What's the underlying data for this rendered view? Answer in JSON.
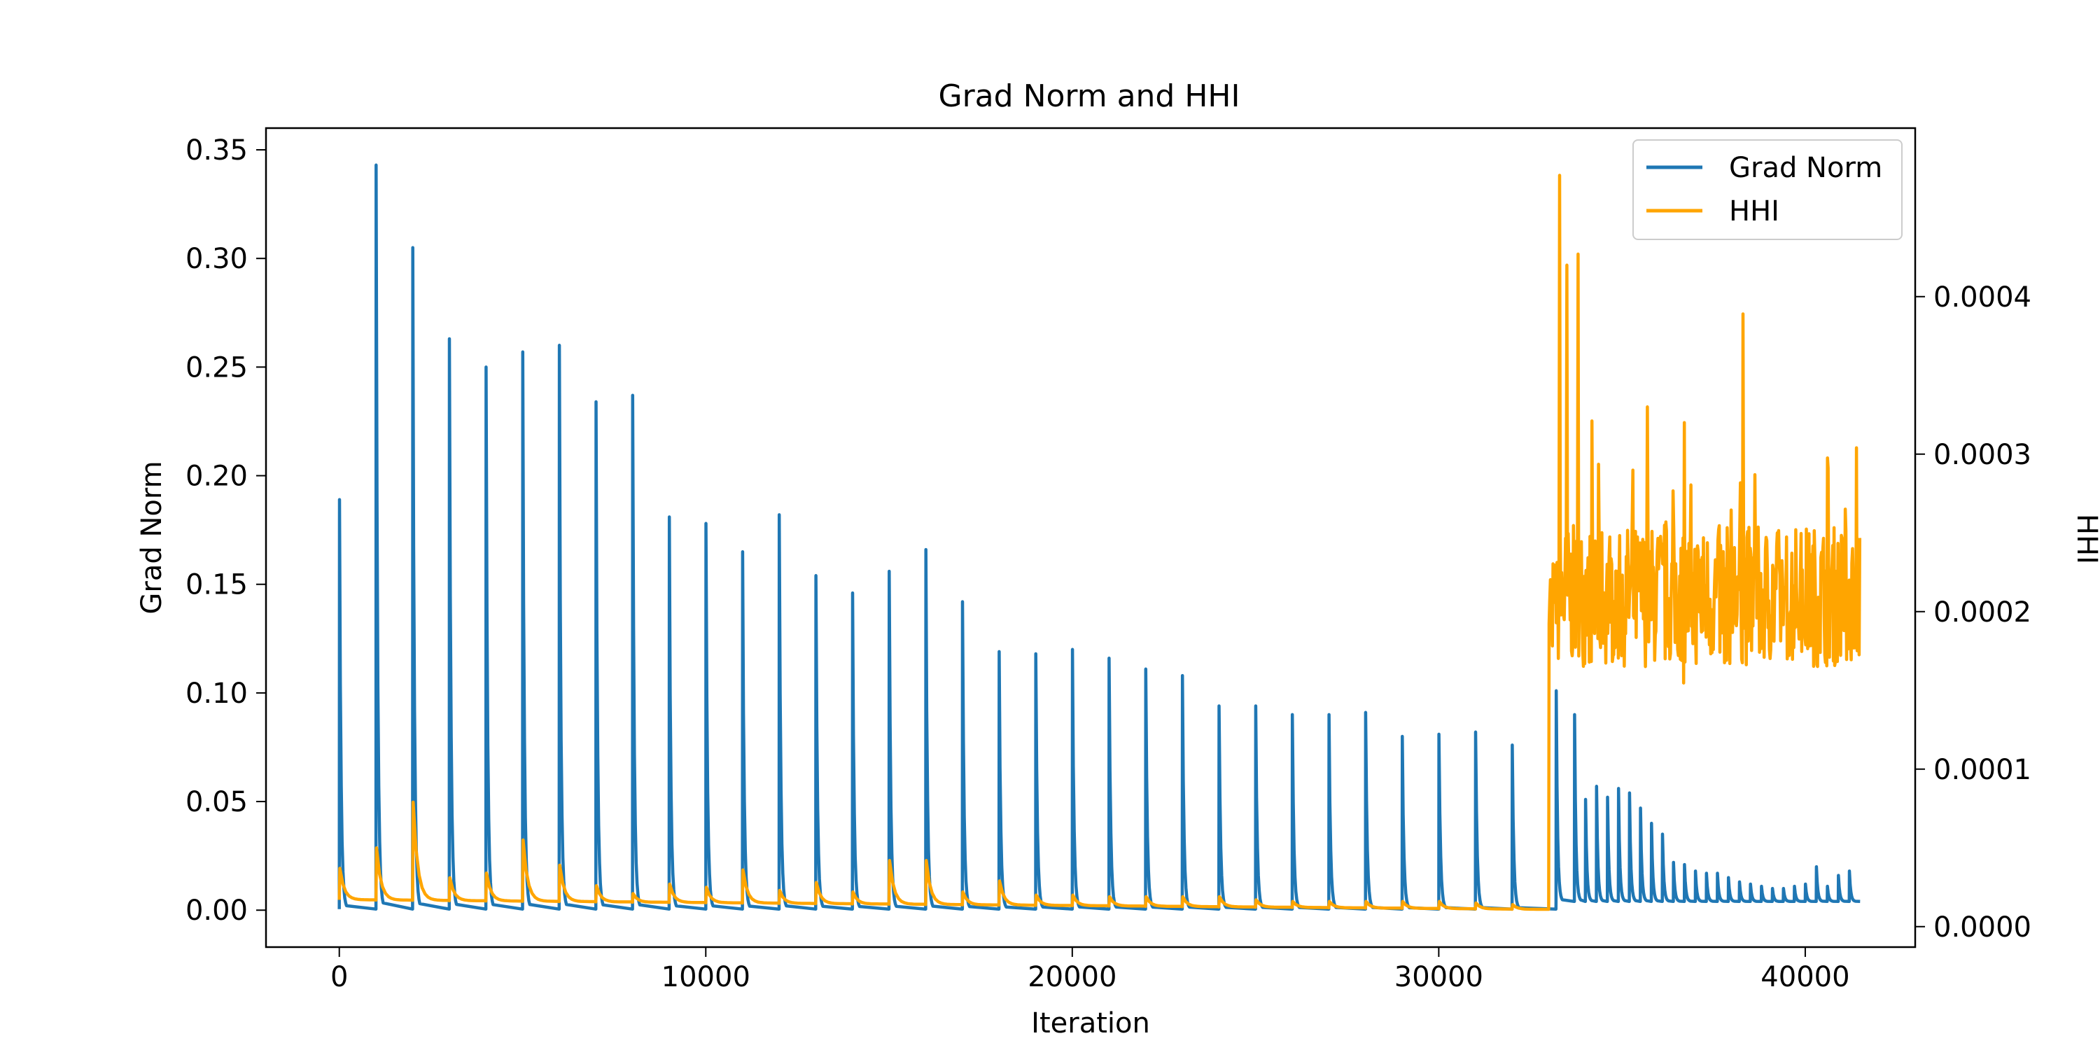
{
  "chart_data": {
    "type": "line",
    "title": "Grad Norm and HHI",
    "xlabel": "Iteration",
    "ylabel": "Grad Norm",
    "y2label": "HHI",
    "xlim": [
      -2000,
      43000
    ],
    "ylim": [
      -0.017,
      0.36
    ],
    "y2lim": [
      -1.3e-05,
      0.000507
    ],
    "xticks": [
      0,
      10000,
      20000,
      30000,
      40000
    ],
    "xtick_labels": [
      "0",
      "10000",
      "20000",
      "30000",
      "40000"
    ],
    "yticks": [
      0,
      0.05,
      0.1,
      0.15,
      0.2,
      0.25,
      0.3,
      0.35
    ],
    "ytick_labels": [
      "0.00",
      "0.05",
      "0.10",
      "0.15",
      "0.20",
      "0.25",
      "0.30",
      "0.35"
    ],
    "y2ticks": [
      0,
      0.0001,
      0.0002,
      0.0003,
      0.0004
    ],
    "y2tick_labels": [
      "0.0000",
      "0.0001",
      "0.0002",
      "0.0003",
      "0.0004"
    ],
    "grid": false,
    "legend_position": "top-right",
    "series": [
      {
        "name": "Grad Norm",
        "axis": "left",
        "color": "#1f77b4",
        "spike_x": [
          0,
          1000,
          2000,
          3000,
          4000,
          5000,
          6000,
          7000,
          8000,
          9000,
          10000,
          11000,
          12000,
          13000,
          14000,
          15000,
          16000,
          17000,
          18000,
          19000,
          20000,
          21000,
          22000,
          23000,
          24000,
          25000,
          26000,
          27000,
          28000,
          29000,
          30000,
          31000,
          32000,
          33200,
          33700,
          34000,
          34300,
          34600,
          34900,
          35200,
          35500,
          35800,
          36100,
          36400,
          36700,
          37000,
          37300,
          37600,
          37900,
          38200,
          38500,
          38800,
          39100,
          39400,
          39700,
          40000,
          40300,
          40600,
          40900,
          41200
        ],
        "spike_peak": [
          0.189,
          0.343,
          0.305,
          0.263,
          0.25,
          0.257,
          0.26,
          0.234,
          0.237,
          0.181,
          0.178,
          0.165,
          0.182,
          0.154,
          0.146,
          0.156,
          0.166,
          0.142,
          0.119,
          0.118,
          0.12,
          0.116,
          0.111,
          0.108,
          0.094,
          0.094,
          0.09,
          0.09,
          0.091,
          0.08,
          0.081,
          0.082,
          0.076,
          0.101,
          0.09,
          0.051,
          0.057,
          0.052,
          0.056,
          0.054,
          0.047,
          0.04,
          0.035,
          0.022,
          0.021,
          0.018,
          0.017,
          0.017,
          0.015,
          0.013,
          0.012,
          0.011,
          0.01,
          0.01,
          0.011,
          0.012,
          0.02,
          0.011,
          0.016,
          0.018
        ],
        "baseline_before": 0.0005,
        "baseline_after": 0.004,
        "end_x": 41500
      },
      {
        "name": "HHI",
        "axis": "right",
        "color": "#ffa500",
        "spike_x": [
          0,
          1000,
          2000,
          3000,
          4000,
          5000,
          6000,
          7000,
          8000,
          9000,
          10000,
          11000,
          12000,
          13000,
          14000,
          15000,
          16000,
          17000,
          18000,
          19000,
          20000,
          21000,
          22000,
          23000,
          24000,
          25000,
          26000,
          27000,
          28000,
          29000,
          30000,
          31000,
          32000
        ],
        "spike_peak": [
          3.7e-05,
          5e-05,
          7.9e-05,
          3.1e-05,
          3.4e-05,
          5.5e-05,
          3.9e-05,
          2.6e-05,
          2.1e-05,
          2.7e-05,
          2.5e-05,
          3.6e-05,
          2.3e-05,
          2.8e-05,
          2.2e-05,
          4.2e-05,
          4.2e-05,
          2.2e-05,
          2.9e-05,
          2e-05,
          2e-05,
          1.9e-05,
          1.9e-05,
          1.9e-05,
          1.9e-05,
          1.7e-05,
          1.6e-05,
          1.6e-05,
          1.6e-05,
          1.6e-05,
          1.6e-05,
          1.5e-05,
          1.4e-05
        ],
        "baseline_start": 1.7e-05,
        "baseline_end": 1.1e-05,
        "jump_x": 33000,
        "after_mean": 0.00021,
        "after_min": 0.000145,
        "after_max": 0.000477,
        "after_notable_peaks": [
          {
            "x": 33300,
            "y": 0.000477
          },
          {
            "x": 33500,
            "y": 0.00042
          },
          {
            "x": 33800,
            "y": 0.000427
          },
          {
            "x": 35700,
            "y": 0.00033
          },
          {
            "x": 36700,
            "y": 0.00032
          },
          {
            "x": 38300,
            "y": 0.000389
          },
          {
            "x": 41400,
            "y": 0.000304
          }
        ],
        "end_x": 41500
      }
    ]
  }
}
